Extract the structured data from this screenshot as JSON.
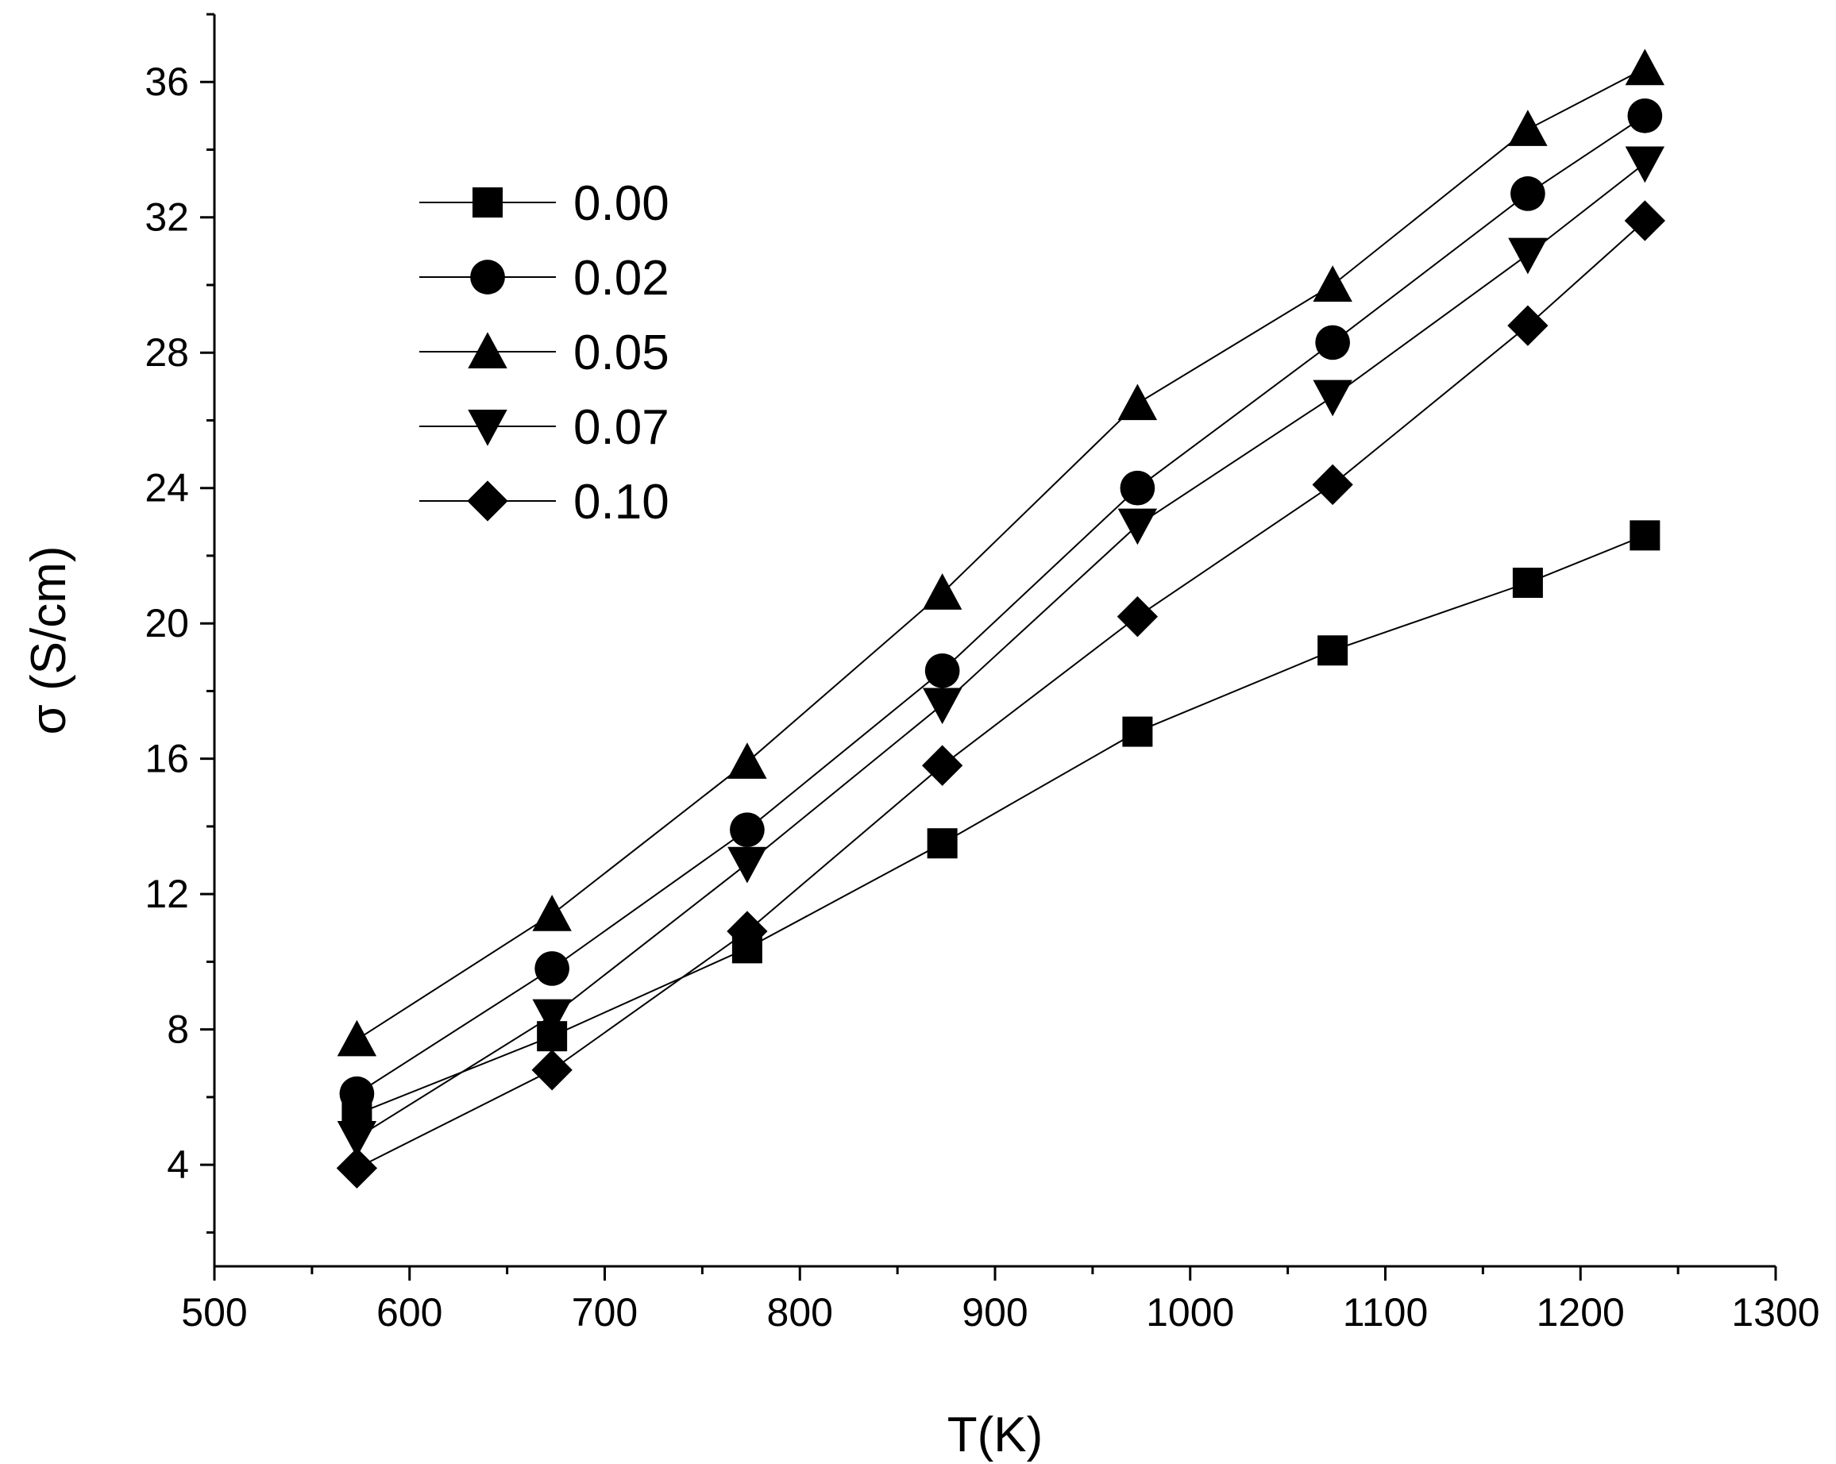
{
  "chart_data": {
    "type": "line",
    "xlabel": "T(K)",
    "ylabel": "σ  (S/cm)",
    "xlim": [
      500,
      1300
    ],
    "ylim": [
      1,
      38
    ],
    "x_ticks": [
      500,
      600,
      700,
      800,
      900,
      1000,
      1100,
      1200,
      1300
    ],
    "x_tick_labels": [
      "500",
      "600",
      "700",
      "800",
      "900",
      "1000",
      "1100",
      "1200",
      "1300"
    ],
    "y_ticks": [
      4,
      8,
      12,
      16,
      20,
      24,
      28,
      32,
      36
    ],
    "y_tick_labels": [
      "4",
      "8",
      "12",
      "16",
      "20",
      "24",
      "28",
      "32",
      "36"
    ],
    "grid": false,
    "legend_position": "top-left",
    "x": [
      573,
      673,
      773,
      873,
      973,
      1073,
      1173,
      1233
    ],
    "series": [
      {
        "name": "0.00",
        "marker": "square",
        "values": [
          5.5,
          7.8,
          10.4,
          13.5,
          16.8,
          19.2,
          21.2,
          22.6
        ]
      },
      {
        "name": "0.02",
        "marker": "circle",
        "values": [
          6.1,
          9.8,
          13.9,
          18.6,
          24.0,
          28.3,
          32.7,
          35.0
        ]
      },
      {
        "name": "0.05",
        "marker": "triangle-up",
        "values": [
          7.7,
          11.4,
          15.9,
          20.9,
          26.5,
          30.0,
          34.6,
          36.4
        ]
      },
      {
        "name": "0.07",
        "marker": "triangle-down",
        "values": [
          4.8,
          8.4,
          12.9,
          17.6,
          22.9,
          26.7,
          30.9,
          33.6
        ]
      },
      {
        "name": "0.10",
        "marker": "diamond",
        "values": [
          3.9,
          6.8,
          10.9,
          15.8,
          20.2,
          24.1,
          28.8,
          31.9
        ]
      }
    ]
  }
}
